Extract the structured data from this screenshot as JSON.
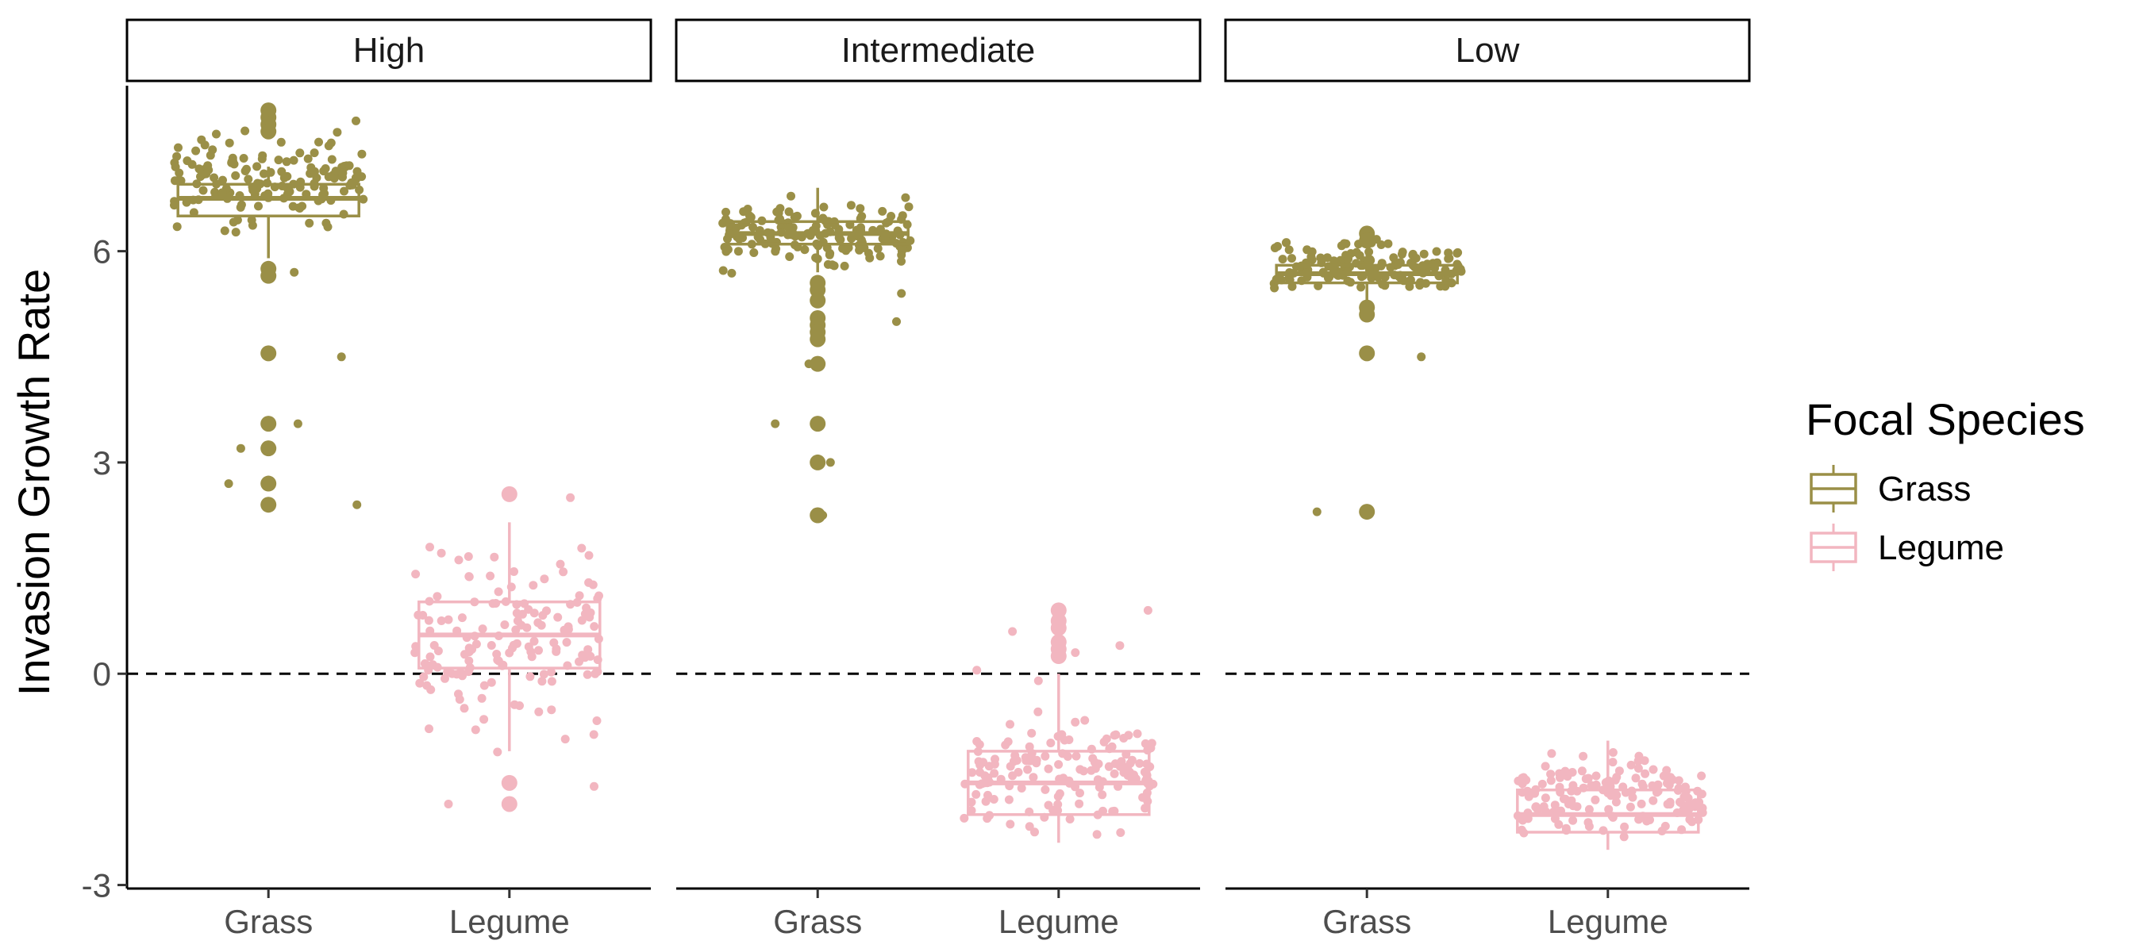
{
  "chart_data": {
    "type": "boxplot",
    "ylabel": "Invasion Growth Rate",
    "xlabel": "",
    "ylim": [
      -3.05,
      8.35
    ],
    "yticks": [
      -3,
      0,
      3,
      6
    ],
    "reference_line": {
      "y": 0,
      "style": "dashed",
      "color": "#000000"
    },
    "facets": [
      "High",
      "Intermediate",
      "Low"
    ],
    "categories": [
      "Grass",
      "Legume"
    ],
    "legend": {
      "title": "Focal Species",
      "position": "right",
      "entries": [
        {
          "name": "Grass",
          "color": "#9a8f47"
        },
        {
          "name": "Legume",
          "color": "#f2b6c0"
        }
      ]
    },
    "series": [
      {
        "name": "Grass",
        "color": "#9a8f47",
        "boxes": [
          {
            "facet": "High",
            "q1": 6.5,
            "median": 6.75,
            "q3": 6.95,
            "whisker_low": 5.9,
            "whisker_high": 7.2,
            "outliers": [
              8.0,
              7.9,
              7.8,
              7.7,
              5.75,
              5.65,
              4.55,
              3.55,
              3.2,
              2.7,
              2.4
            ],
            "jitter_range": [
              6.05,
              7.95
            ],
            "jitter_extra": [
              4.5,
              3.55,
              3.2,
              2.7,
              2.4,
              5.7
            ]
          },
          {
            "facet": "Intermediate",
            "q1": 6.1,
            "median": 6.25,
            "q3": 6.42,
            "whisker_low": 5.7,
            "whisker_high": 6.9,
            "outliers": [
              5.55,
              5.45,
              5.3,
              5.05,
              4.95,
              4.85,
              4.75,
              4.4,
              3.55,
              3.0,
              2.25
            ],
            "jitter_range": [
              5.6,
              6.9
            ],
            "jitter_extra": [
              4.4,
              2.25,
              3.55,
              3.0,
              5.4,
              5.0
            ]
          },
          {
            "facet": "Low",
            "q1": 5.55,
            "median": 5.68,
            "q3": 5.8,
            "whisker_low": 5.3,
            "whisker_high": 6.0,
            "outliers": [
              6.25,
              6.15,
              5.2,
              5.1,
              4.55,
              2.3
            ],
            "jitter_range": [
              5.25,
              6.25
            ],
            "jitter_extra": [
              4.5,
              2.3
            ]
          }
        ]
      },
      {
        "name": "Legume",
        "color": "#f2b6c0",
        "boxes": [
          {
            "facet": "High",
            "q1": 0.08,
            "median": 0.55,
            "q3": 1.02,
            "whisker_low": -1.1,
            "whisker_high": 2.15,
            "outliers": [
              2.55,
              -1.55,
              -1.85
            ],
            "jitter_range": [
              -1.2,
              2.2
            ],
            "jitter_extra": [
              2.5,
              -1.6,
              -1.85
            ]
          },
          {
            "facet": "Intermediate",
            "q1": -2.0,
            "median": -1.55,
            "q3": -1.1,
            "whisker_low": -2.4,
            "whisker_high": 0.0,
            "outliers": [
              0.9,
              0.75,
              0.65,
              0.45,
              0.35,
              0.25
            ],
            "jitter_range": [
              -2.45,
              -0.4
            ],
            "jitter_extra": [
              0.9,
              0.6,
              0.4,
              0.05,
              -0.1,
              0.3
            ]
          },
          {
            "facet": "Low",
            "q1": -2.25,
            "median": -2.0,
            "q3": -1.65,
            "whisker_low": -2.5,
            "whisker_high": -0.95,
            "outliers": [],
            "jitter_range": [
              -2.55,
              -0.9
            ],
            "jitter_extra": []
          }
        ]
      }
    ]
  }
}
